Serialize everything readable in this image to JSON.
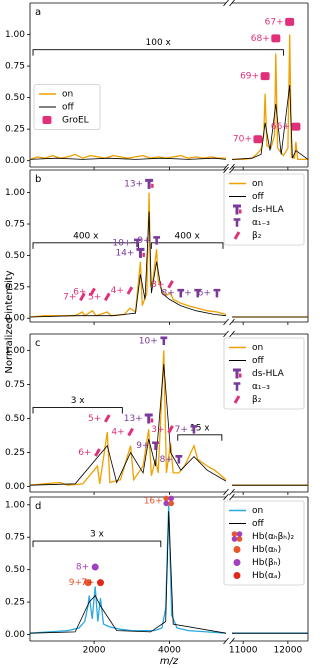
{
  "ylabel": "Normalized intensity",
  "xlabel": "m/z",
  "chart_data": [
    {
      "type": "line",
      "panel_label": "a",
      "legend": "center left",
      "xlim": [
        [
          300,
          5500
        ],
        [
          10750,
          12450
        ]
      ],
      "xticks": [
        2000,
        4000,
        11000,
        12000
      ],
      "ylim": [
        -0.05,
        1.25
      ],
      "yticks": [
        {
          "value": 0,
          "label": "0.00"
        },
        {
          "value": 0.25,
          "label": "0.25"
        },
        {
          "value": 0.5,
          "label": "0.50"
        },
        {
          "value": 0.75,
          "label": "0.75"
        },
        {
          "value": 1,
          "label": "1.00"
        }
      ],
      "series": [
        {
          "name": "on",
          "color": "#f0a000",
          "x": [
            300,
            500,
            700,
            900,
            1100,
            1300,
            1500,
            1700,
            1900,
            2100,
            2300,
            2500,
            2700,
            2900,
            3100,
            3300,
            3500,
            3700,
            3900,
            4100,
            4300,
            4500,
            4700,
            4900,
            5100,
            5300,
            5500,
            null,
            10750,
            11000,
            11200,
            11330,
            11400,
            11460,
            11490,
            11530,
            11620,
            11700,
            11730,
            11770,
            11900,
            12000,
            12040,
            12080,
            12150,
            12180,
            12220,
            12450
          ],
          "values": [
            0.01,
            0.03,
            0.02,
            0.04,
            0.02,
            0.03,
            0.05,
            0.02,
            0.04,
            0.03,
            0.02,
            0.04,
            0.03,
            0.02,
            0.03,
            0.04,
            0.02,
            0.03,
            0.02,
            0.03,
            0.04,
            0.02,
            0.03,
            0.02,
            0.03,
            0.02,
            0.02,
            null,
            0.01,
            0.01,
            0.02,
            0.06,
            0.09,
            0.2,
            0.53,
            0.12,
            0.1,
            0.2,
            0.85,
            0.1,
            0.04,
            0.1,
            1.0,
            0.03,
            0.02,
            0.15,
            0.01,
            0.01
          ]
        },
        {
          "name": "off",
          "color": "#000000",
          "x": [
            300,
            1000,
            1700,
            2400,
            3100,
            3800,
            4500,
            5200,
            5500,
            null,
            10750,
            11200,
            11400,
            11490,
            11600,
            11730,
            11850,
            12040,
            12100,
            12180,
            12450
          ],
          "values": [
            0.01,
            0.02,
            0.01,
            0.02,
            0.01,
            0.02,
            0.01,
            0.02,
            0.01,
            null,
            0.01,
            0.02,
            0.05,
            0.3,
            0.08,
            0.45,
            0.05,
            0.6,
            0.02,
            0.08,
            0.01
          ]
        }
      ],
      "species": [
        {
          "name": "GroEL",
          "color": "#e0307a",
          "shape": "square"
        }
      ],
      "annotations": [
        {
          "text": "70+",
          "x": 11330,
          "y": 0.17,
          "species": "GroEL"
        },
        {
          "text": "69+",
          "x": 11490,
          "y": 0.67,
          "species": "GroEL"
        },
        {
          "text": "68+",
          "x": 11730,
          "y": 0.97,
          "species": "GroEL"
        },
        {
          "text": "67+",
          "x": 12040,
          "y": 1.1,
          "species": "GroEL"
        },
        {
          "text": "66+",
          "x": 12180,
          "y": 0.27,
          "species": "GroEL"
        }
      ],
      "zooms": [
        {
          "label": "100 x",
          "from": 380,
          "to": 11900,
          "y": 0.88
        }
      ]
    },
    {
      "type": "line",
      "panel_label": "b",
      "legend": "upper right",
      "xlim": [
        [
          300,
          5500
        ],
        [
          10750,
          12450
        ]
      ],
      "xticks": [
        2000,
        4000,
        11000,
        12000
      ],
      "ylim": [
        -0.03,
        1.18
      ],
      "yticks": [
        {
          "value": 0,
          "label": "0.00"
        },
        {
          "value": 0.25,
          "label": "0.25"
        },
        {
          "value": 0.5,
          "label": "0.50"
        },
        {
          "value": 0.75,
          "label": "0.75"
        },
        {
          "value": 1,
          "label": "1.00"
        }
      ],
      "series": [
        {
          "name": "on",
          "color": "#f0a000",
          "x": [
            300,
            700,
            1100,
            1500,
            1690,
            1750,
            1960,
            2050,
            2350,
            2450,
            2800,
            2950,
            3100,
            3230,
            3280,
            3400,
            3460,
            3500,
            3560,
            3660,
            3700,
            3800,
            3900,
            4030,
            4100,
            4300,
            4500,
            4750,
            5000,
            5260,
            5500,
            null,
            10750,
            11500,
            12450
          ],
          "values": [
            0.01,
            0.02,
            0.02,
            0.02,
            0.05,
            0.02,
            0.06,
            0.02,
            0.05,
            0.02,
            0.03,
            0.08,
            0.05,
            0.45,
            0.1,
            0.2,
            1.0,
            0.25,
            0.3,
            0.55,
            0.3,
            0.22,
            0.18,
            0.2,
            0.15,
            0.12,
            0.1,
            0.08,
            0.06,
            0.05,
            0.03,
            null,
            0.01,
            0.01,
            0.01
          ]
        },
        {
          "name": "off",
          "color": "#000000",
          "x": [
            300,
            1500,
            2500,
            3100,
            3230,
            3350,
            3460,
            3520,
            3660,
            3800,
            4000,
            4300,
            4700,
            5200,
            5500,
            null,
            10750,
            12450
          ],
          "values": [
            0.01,
            0.02,
            0.02,
            0.04,
            0.35,
            0.15,
            0.85,
            0.2,
            0.45,
            0.2,
            0.15,
            0.1,
            0.06,
            0.03,
            0.02,
            null,
            0.01,
            0.01
          ]
        }
      ],
      "species": [
        {
          "name": "ds-HLA",
          "color": "#7a3a9a",
          "shape": "hla"
        },
        {
          "name": "α₁₋₃",
          "color": "#7a3a9a",
          "shape": "alpha"
        },
        {
          "name": "β₂",
          "color": "#e0307a",
          "shape": "beta"
        }
      ],
      "annotations": [
        {
          "text": "13+",
          "x": 3460,
          "y": 1.07,
          "species": "ds-HLA"
        },
        {
          "text": "14+",
          "x": 3230,
          "y": 0.52,
          "species": "ds-HLA"
        },
        {
          "text": "10+",
          "x": 3150,
          "y": 0.6,
          "species": "α₁₋₃"
        },
        {
          "text": "9+",
          "x": 3660,
          "y": 0.62,
          "species": "α₁₋₃"
        },
        {
          "text": "7+",
          "x": 1690,
          "y": 0.17,
          "species": "β₂"
        },
        {
          "text": "6+",
          "x": 1960,
          "y": 0.21,
          "species": "β₂"
        },
        {
          "text": "5+",
          "x": 2350,
          "y": 0.17,
          "species": "β₂"
        },
        {
          "text": "4+",
          "x": 2950,
          "y": 0.22,
          "species": "β₂"
        },
        {
          "text": "3+",
          "x": 4030,
          "y": 0.27,
          "species": "β₂"
        },
        {
          "text": "8+",
          "x": 4300,
          "y": 0.2,
          "species": "α₁₋₃"
        },
        {
          "text": "7+",
          "x": 4750,
          "y": 0.2,
          "species": "α₁₋₃"
        },
        {
          "text": "6+",
          "x": 5260,
          "y": 0.2,
          "species": "α₁₋₃"
        }
      ],
      "zooms": [
        {
          "label": "400 x",
          "from": 380,
          "to": 3180,
          "y": 0.6
        },
        {
          "label": "400 x",
          "from": 3520,
          "to": 5420,
          "y": 0.6
        }
      ]
    },
    {
      "type": "line",
      "panel_label": "c",
      "legend": "upper right",
      "xlim": [
        [
          300,
          5500
        ],
        [
          10750,
          12450
        ]
      ],
      "xticks": [
        2000,
        4000,
        11000,
        12000
      ],
      "ylim": [
        -0.04,
        1.12
      ],
      "yticks": [
        {
          "value": 0,
          "label": "0.00"
        },
        {
          "value": 0.25,
          "label": "0.25"
        },
        {
          "value": 0.5,
          "label": "0.50"
        },
        {
          "value": 0.75,
          "label": "0.75"
        },
        {
          "value": 1,
          "label": "1.00"
        }
      ],
      "series": [
        {
          "name": "on",
          "color": "#f0a000",
          "x": [
            300,
            700,
            1100,
            1300,
            1700,
            2090,
            2150,
            2350,
            2420,
            2700,
            2970,
            3050,
            3300,
            3450,
            3520,
            3630,
            3700,
            3850,
            3920,
            4030,
            4100,
            4250,
            4400,
            4650,
            4750,
            5000,
            5200,
            5500,
            null,
            10750,
            12450
          ],
          "values": [
            0.01,
            0.02,
            0.03,
            0.01,
            0.02,
            0.15,
            0.02,
            0.4,
            0.03,
            0.05,
            0.3,
            0.05,
            0.15,
            0.42,
            0.08,
            0.2,
            0.1,
            1.0,
            0.1,
            0.32,
            0.1,
            0.1,
            0.15,
            0.3,
            0.2,
            0.15,
            0.12,
            0.05,
            null,
            0.01,
            0.01
          ]
        },
        {
          "name": "off",
          "color": "#000000",
          "x": [
            300,
            1500,
            2350,
            2600,
            2970,
            3300,
            3450,
            3630,
            3850,
            4030,
            4300,
            4650,
            5000,
            5500,
            null,
            10750,
            12450
          ],
          "values": [
            0.01,
            0.02,
            0.3,
            0.03,
            0.25,
            0.1,
            0.35,
            0.15,
            0.9,
            0.25,
            0.12,
            0.22,
            0.12,
            0.04,
            null,
            0.01,
            0.01
          ]
        }
      ],
      "species": [
        {
          "name": "ds-HLA",
          "color": "#7a3a9a",
          "shape": "hla"
        },
        {
          "name": "α₁₋₃",
          "color": "#7a3a9a",
          "shape": "alpha"
        },
        {
          "name": "β₂",
          "color": "#e0307a",
          "shape": "beta"
        }
      ],
      "annotations": [
        {
          "text": "10+",
          "x": 3850,
          "y": 1.07,
          "species": "α₁₋₃"
        },
        {
          "text": "13+",
          "x": 3450,
          "y": 0.5,
          "species": "ds-HLA"
        },
        {
          "text": "9+",
          "x": 3630,
          "y": 0.3,
          "species": "α₁₋₃"
        },
        {
          "text": "8+",
          "x": 4250,
          "y": 0.2,
          "species": "α₁₋₃"
        },
        {
          "text": "7+",
          "x": 4650,
          "y": 0.42,
          "species": "α₁₋₃"
        },
        {
          "text": "6+",
          "x": 2090,
          "y": 0.25,
          "species": "β₂"
        },
        {
          "text": "5+",
          "x": 2350,
          "y": 0.5,
          "species": "β₂"
        },
        {
          "text": "4+",
          "x": 2970,
          "y": 0.4,
          "species": "β₂"
        },
        {
          "text": "3+",
          "x": 4030,
          "y": 0.42,
          "species": "β₂"
        }
      ],
      "zooms": [
        {
          "label": "3 x",
          "from": 380,
          "to": 2750,
          "y": 0.58
        },
        {
          "label": "15 x",
          "from": 4220,
          "to": 5390,
          "y": 0.38
        }
      ]
    },
    {
      "type": "line",
      "panel_label": "d",
      "legend": "upper right",
      "xlim": [
        [
          300,
          5500
        ],
        [
          10750,
          12450
        ]
      ],
      "xticks": [
        2000,
        4000,
        11000,
        12000
      ],
      "ylim": [
        -0.05,
        1.06
      ],
      "yticks": [
        {
          "value": 0,
          "label": "0.00"
        },
        {
          "value": 0.25,
          "label": "0.25"
        },
        {
          "value": 0.5,
          "label": "0.50"
        },
        {
          "value": 0.75,
          "label": "0.75"
        },
        {
          "value": 1,
          "label": "1.00"
        }
      ],
      "series": [
        {
          "name": "on",
          "color": "#29a8e0",
          "x": [
            300,
            800,
            1300,
            1600,
            1750,
            1840,
            1870,
            1950,
            2030,
            2100,
            2170,
            2250,
            2400,
            2700,
            3000,
            3300,
            3600,
            3800,
            3900,
            3980,
            4060,
            4200,
            4500,
            5000,
            5500,
            null,
            10750,
            12450
          ],
          "values": [
            0.01,
            0.02,
            0.03,
            0.05,
            0.1,
            0.22,
            0.3,
            0.12,
            0.37,
            0.1,
            0.28,
            0.08,
            0.06,
            0.04,
            0.03,
            0.03,
            0.03,
            0.05,
            0.2,
            1.0,
            0.15,
            0.05,
            0.03,
            0.02,
            0.01,
            null,
            0.01,
            0.01
          ]
        },
        {
          "name": "off",
          "color": "#000000",
          "x": [
            300,
            1500,
            1870,
            2030,
            2170,
            2600,
            3500,
            3900,
            3980,
            4100,
            5500,
            null,
            10750,
            12450
          ],
          "values": [
            0.01,
            0.02,
            0.25,
            0.3,
            0.22,
            0.03,
            0.02,
            0.1,
            0.95,
            0.08,
            0.01,
            null,
            0.01,
            0.01
          ]
        }
      ],
      "species": [
        {
          "name": "Hb(αₕβₕ)₂",
          "color": "#e8562a",
          "shape": "cluster"
        },
        {
          "name": "Hb(αₕ)",
          "color": "#e8562a",
          "shape": "circle"
        },
        {
          "name": "Hb(βₕ)",
          "color": "#a040c0",
          "shape": "circle"
        },
        {
          "name": "Hb(αₐ)",
          "color": "#e02818",
          "shape": "circle"
        }
      ],
      "annotations": [
        {
          "text": "16+",
          "x": 3980,
          "y": 1.03,
          "species": "Hb(αₕβₕ)₂"
        },
        {
          "text": "9+",
          "x": 1840,
          "y": 0.4,
          "species": "Hb(αₕ)"
        },
        {
          "text": "8+",
          "x": 2030,
          "y": 0.52,
          "species": "Hb(βₕ)"
        },
        {
          "text": "7+",
          "x": 2170,
          "y": 0.4,
          "species": "Hb(αₐ)"
        }
      ],
      "zooms": [
        {
          "label": "3 x",
          "from": 380,
          "to": 3770,
          "y": 0.72
        }
      ]
    }
  ]
}
